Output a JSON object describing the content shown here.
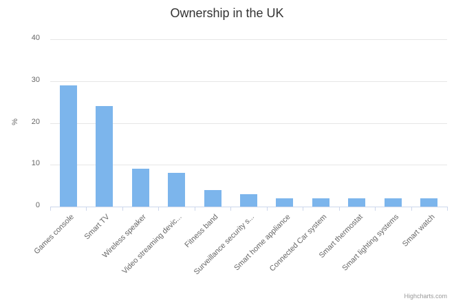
{
  "chart_data": {
    "type": "bar",
    "title": "Ownership in the UK",
    "categories": [
      "Games console",
      "Smart TV",
      "Wireless speaker",
      "Video streaming devic...",
      "Fitness band",
      "Surveillance security s...",
      "Smart home appliance",
      "Connected Car system",
      "Smart thermostat",
      "Smart lighting systems",
      "Smart watch"
    ],
    "values": [
      29,
      24,
      9,
      8,
      4,
      3,
      2,
      2,
      2,
      2,
      2
    ],
    "xlabel": "",
    "ylabel": "%",
    "ylim": [
      0,
      40
    ],
    "yticks": [
      0,
      10,
      20,
      30,
      40
    ],
    "grid": true,
    "legend": "none",
    "bar_color": "#7cb5ec"
  },
  "credits": {
    "label": "Highcharts.com"
  },
  "colors": {
    "bar": "#7cb5ec",
    "grid": "#e6e6e6",
    "axis_line": "#ccd6eb",
    "title_text": "#333333",
    "axis_text": "#666666",
    "credits_text": "#999999",
    "background": "#ffffff"
  }
}
